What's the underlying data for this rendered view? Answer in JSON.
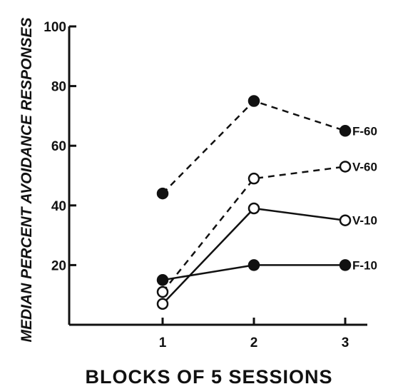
{
  "chart_data": {
    "type": "line",
    "title": "",
    "xlabel": "BLOCKS OF 5 SESSIONS",
    "ylabel": "MEDIAN PERCENT AVOIDANCE RESPONSES",
    "x": [
      1,
      2,
      3
    ],
    "x_ticks": [
      "1",
      "2",
      "3"
    ],
    "y_ticks": [
      "20",
      "40",
      "60",
      "80",
      "100"
    ],
    "ylim": [
      0,
      100
    ],
    "xlim": [
      0.5,
      3.5
    ],
    "grid": false,
    "legend": "labels at line ends (right)",
    "series": [
      {
        "name": "F-60",
        "values": [
          44,
          75,
          65
        ],
        "line": "dashed",
        "marker": "filled"
      },
      {
        "name": "V-60",
        "values": [
          11,
          49,
          53
        ],
        "line": "dashed",
        "marker": "open"
      },
      {
        "name": "V-10",
        "values": [
          7,
          39,
          35
        ],
        "line": "solid",
        "marker": "open"
      },
      {
        "name": "F-10",
        "values": [
          15,
          20,
          20
        ],
        "line": "solid",
        "marker": "filled"
      }
    ]
  }
}
